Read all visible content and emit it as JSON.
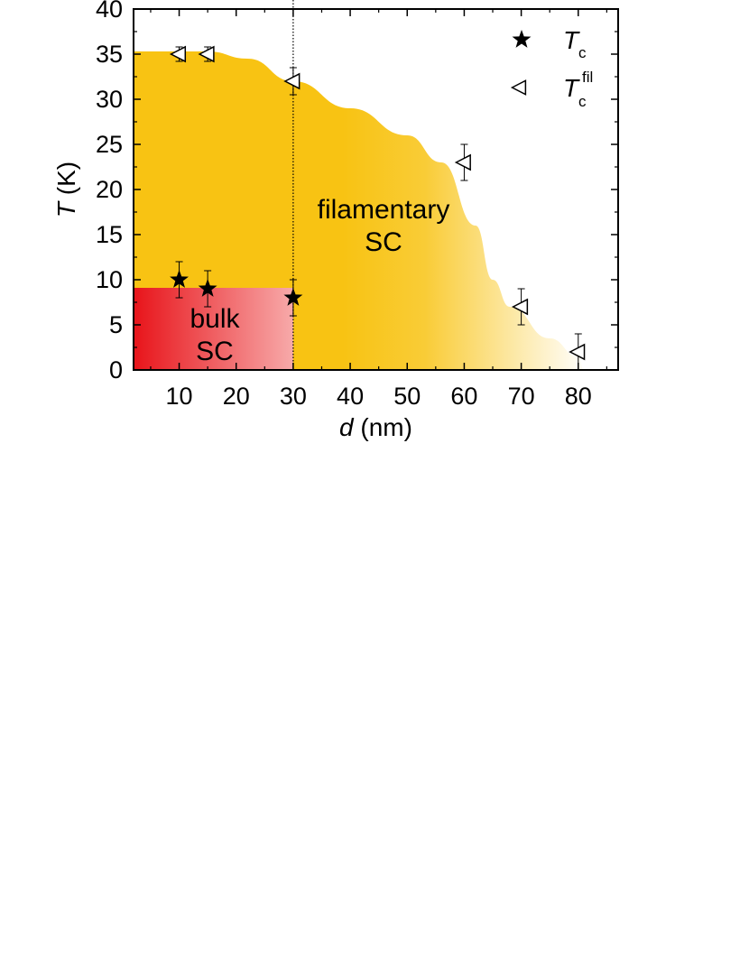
{
  "chart_data": {
    "type": "scatter",
    "xlabel": {
      "var": "d",
      "unit": " (nm)"
    },
    "ylabel": {
      "var": "T",
      "unit": " (K)"
    },
    "xlim": [
      2,
      87
    ],
    "ylim": [
      0,
      40
    ],
    "xticks": [
      10,
      20,
      30,
      40,
      50,
      60,
      70,
      80
    ],
    "yticks": [
      0,
      5,
      10,
      15,
      20,
      25,
      30,
      35,
      40
    ],
    "grid": false,
    "legend_position": "top-right",
    "series": [
      {
        "name": "T_c",
        "legend_main": "T",
        "legend_sub": "c",
        "marker": "filled-star",
        "points": [
          {
            "x": 10,
            "y": 10,
            "err": 2
          },
          {
            "x": 15,
            "y": 9,
            "err": 2
          },
          {
            "x": 30,
            "y": 8,
            "err": 2
          }
        ]
      },
      {
        "name": "T_c^fil",
        "legend_main": "T",
        "legend_sub": "c",
        "legend_sup": "fil",
        "marker": "open-left-triangle",
        "points": [
          {
            "x": 10,
            "y": 35,
            "err": 0.8
          },
          {
            "x": 15,
            "y": 35,
            "err": 0.8
          },
          {
            "x": 30,
            "y": 32,
            "err": 1.5
          },
          {
            "x": 60,
            "y": 23,
            "err": 2
          },
          {
            "x": 70,
            "y": 7,
            "err": 2
          },
          {
            "x": 80,
            "y": 2,
            "err": 2
          }
        ]
      }
    ],
    "regions": [
      {
        "name": "filamentary-sc",
        "label_lines": [
          "filamentary",
          "SC"
        ],
        "color": "#f8c313",
        "boundary": [
          [
            2,
            35.3
          ],
          [
            15,
            35.3
          ],
          [
            22,
            34.5
          ],
          [
            30,
            32
          ],
          [
            40,
            29
          ],
          [
            50,
            26
          ],
          [
            56,
            23
          ],
          [
            62,
            16
          ],
          [
            65,
            10
          ],
          [
            68,
            7
          ],
          [
            75,
            3.5
          ],
          [
            80,
            1.5
          ],
          [
            81,
            0
          ]
        ]
      },
      {
        "name": "bulk-sc",
        "label_lines": [
          "bulk",
          "SC"
        ],
        "color_start": "#e8141a",
        "color_end": "#f7a8a8",
        "x_range": [
          2,
          30
        ],
        "y_max": 9.1
      }
    ],
    "vline": {
      "x": 30,
      "style": "dotted"
    }
  }
}
